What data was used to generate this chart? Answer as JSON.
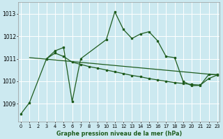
{
  "title": "Graphe pression niveau de la mer (hPa)",
  "bg_color": "#cce9f0",
  "grid_color": "#ffffff",
  "line_color": "#1e5c1e",
  "x_labels": [
    "0",
    "1",
    "2",
    "3",
    "4",
    "5",
    "6",
    "7",
    "8",
    "9",
    "10",
    "11",
    "12",
    "13",
    "14",
    "15",
    "16",
    "17",
    "18",
    "19",
    "20",
    "21",
    "22",
    "23"
  ],
  "y_ticks": [
    1009,
    1010,
    1011,
    1012,
    1013
  ],
  "ylim": [
    1008.2,
    1013.5
  ],
  "xlim": [
    -0.3,
    23.3
  ],
  "main_x": [
    0,
    1,
    3,
    4,
    5,
    6,
    7,
    10,
    11,
    12,
    13,
    14,
    15,
    16,
    17,
    18,
    19,
    20,
    21,
    22,
    23
  ],
  "main_y": [
    1008.55,
    1009.05,
    1011.0,
    1011.35,
    1011.5,
    1009.1,
    1011.0,
    1011.85,
    1013.08,
    1012.3,
    1011.9,
    1012.1,
    1012.2,
    1011.8,
    1011.1,
    1011.05,
    1010.0,
    1009.8,
    1009.82,
    1010.3,
    1010.3
  ],
  "mid_x": [
    3,
    4,
    5,
    6,
    7,
    8,
    9,
    10,
    11,
    12,
    13,
    14,
    15,
    16,
    17,
    18,
    19,
    20,
    21,
    22,
    23
  ],
  "mid_y": [
    1011.0,
    1011.25,
    1011.1,
    1010.85,
    1010.75,
    1010.65,
    1010.58,
    1010.5,
    1010.42,
    1010.34,
    1010.26,
    1010.2,
    1010.12,
    1010.06,
    1010.0,
    1009.94,
    1009.9,
    1009.86,
    1009.83,
    1010.12,
    1010.28
  ],
  "trend_x": [
    1,
    23
  ],
  "trend_y": [
    1011.05,
    1010.28
  ]
}
